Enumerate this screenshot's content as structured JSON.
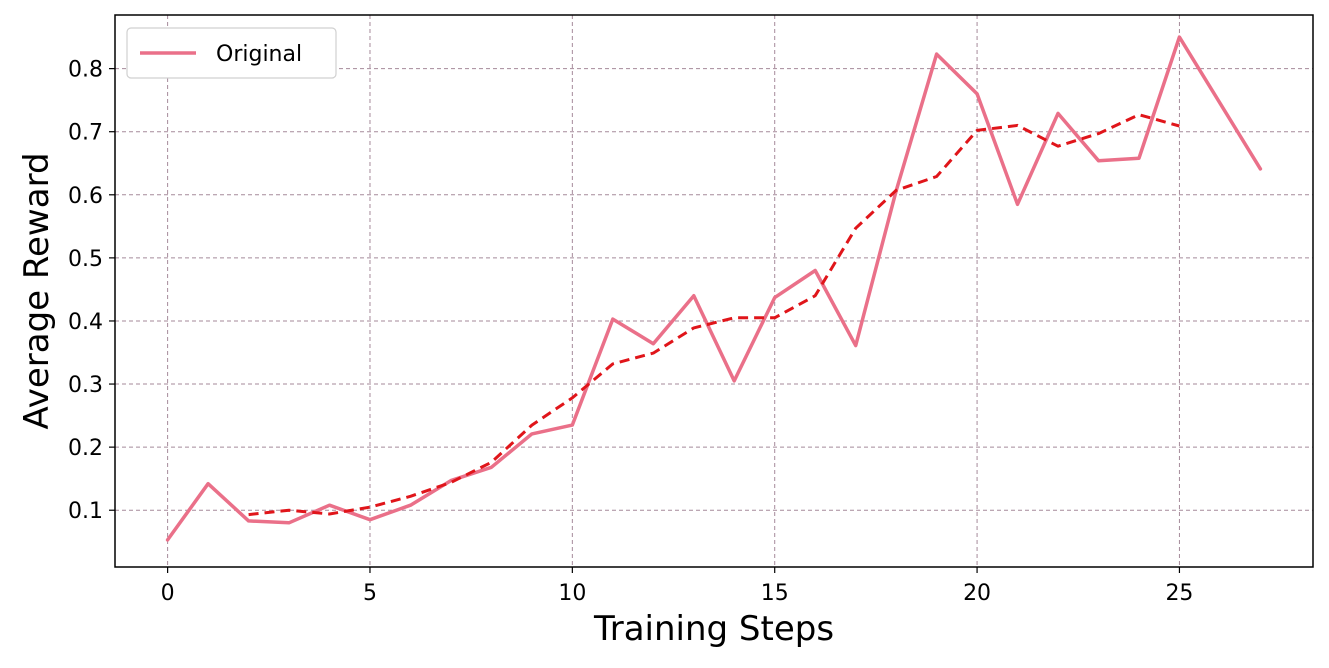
{
  "chart_data": {
    "type": "line",
    "title": "",
    "xlabel": "Training Steps",
    "ylabel": "Average Reward",
    "xlim": [
      -1.3,
      28.3
    ],
    "ylim": [
      0.01,
      0.885
    ],
    "xticks": [
      0,
      5,
      10,
      15,
      20,
      25
    ],
    "yticks": [
      0.1,
      0.2,
      0.3,
      0.4,
      0.5,
      0.6,
      0.7,
      0.8
    ],
    "xtick_labels": [
      "0",
      "5",
      "10",
      "15",
      "20",
      "25"
    ],
    "ytick_labels": [
      "0.1",
      "0.2",
      "0.3",
      "0.4",
      "0.5",
      "0.6",
      "0.7",
      "0.8"
    ],
    "grid": true,
    "legend_position": "top-left",
    "series": [
      {
        "name": "Original",
        "color": "#ea7089",
        "style": "solid",
        "x": [
          0,
          1,
          2,
          3,
          4,
          5,
          6,
          7,
          8,
          9,
          10,
          11,
          12,
          13,
          14,
          15,
          16,
          17,
          18,
          19,
          20,
          21,
          22,
          23,
          24,
          25,
          27
        ],
        "y": [
          0.053,
          0.142,
          0.083,
          0.08,
          0.108,
          0.085,
          0.108,
          0.147,
          0.168,
          0.221,
          0.235,
          0.403,
          0.364,
          0.44,
          0.305,
          0.437,
          0.48,
          0.361,
          0.606,
          0.823,
          0.76,
          0.585,
          0.729,
          0.654,
          0.658,
          0.85,
          0.641
        ]
      },
      {
        "color": "#e0151a",
        "style": "dashed",
        "x": [
          2,
          3,
          4,
          5,
          6,
          7,
          8,
          9,
          10,
          11,
          12,
          13,
          14,
          15,
          16,
          17,
          18,
          19,
          20,
          21,
          22,
          23,
          24,
          25
        ],
        "y": [
          0.093,
          0.1,
          0.094,
          0.105,
          0.122,
          0.144,
          0.176,
          0.235,
          0.278,
          0.332,
          0.349,
          0.389,
          0.405,
          0.405,
          0.44,
          0.547,
          0.607,
          0.629,
          0.702,
          0.71,
          0.677,
          0.697,
          0.727,
          0.709
        ]
      }
    ]
  }
}
